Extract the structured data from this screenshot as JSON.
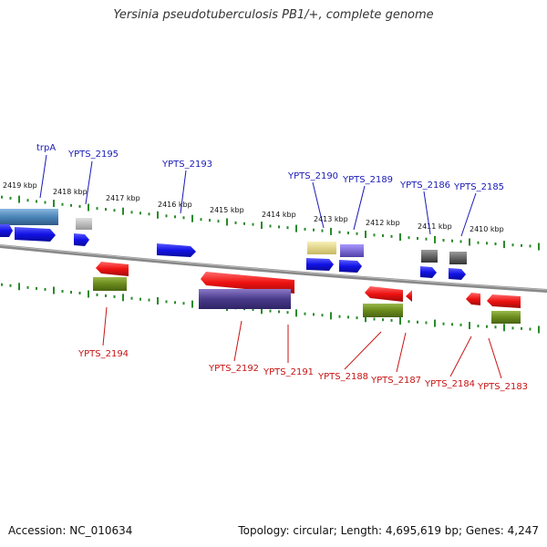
{
  "title": "Yersinia pseudotuberculosis PB1/+, complete genome",
  "footer": {
    "accession": "Accession: NC_010634",
    "stats": "Topology: circular; Length: 4,695,619 bp; Genes: 4,247"
  },
  "colors": {
    "backbone": "#888888",
    "tick": "#2a8a2a",
    "forward_label": "#1a1ab8",
    "reverse_label": "#c81414",
    "blue": "#1212e6",
    "red": "#ee1111",
    "olive": "#6a8a1c",
    "purple": "#4a3a8a",
    "steel": "#4a84b8",
    "gray": "#666666",
    "lightgray": "#bbbbbb",
    "yellow": "#e8dc8a",
    "lavender": "#7060c8"
  },
  "scale_labels": [
    "2419 kbp",
    "2418 kbp",
    "2417 kbp",
    "2416 kbp",
    "2415 kbp",
    "2414 kbp",
    "2413 kbp",
    "2412 kbp",
    "2411 kbp",
    "2410 kbp"
  ],
  "gene_labels": [
    {
      "name": "trpA",
      "strand": "forward"
    },
    {
      "name": "YPTS_2195",
      "strand": "forward"
    },
    {
      "name": "YPTS_2193",
      "strand": "forward"
    },
    {
      "name": "YPTS_2190",
      "strand": "forward"
    },
    {
      "name": "YPTS_2189",
      "strand": "forward"
    },
    {
      "name": "YPTS_2186",
      "strand": "forward"
    },
    {
      "name": "YPTS_2185",
      "strand": "forward"
    },
    {
      "name": "YPTS_2194",
      "strand": "reverse"
    },
    {
      "name": "YPTS_2192",
      "strand": "reverse"
    },
    {
      "name": "YPTS_2191",
      "strand": "reverse"
    },
    {
      "name": "YPTS_2188",
      "strand": "reverse"
    },
    {
      "name": "YPTS_2187",
      "strand": "reverse"
    },
    {
      "name": "YPTS_2184",
      "strand": "reverse"
    },
    {
      "name": "YPTS_2183",
      "strand": "reverse"
    }
  ]
}
